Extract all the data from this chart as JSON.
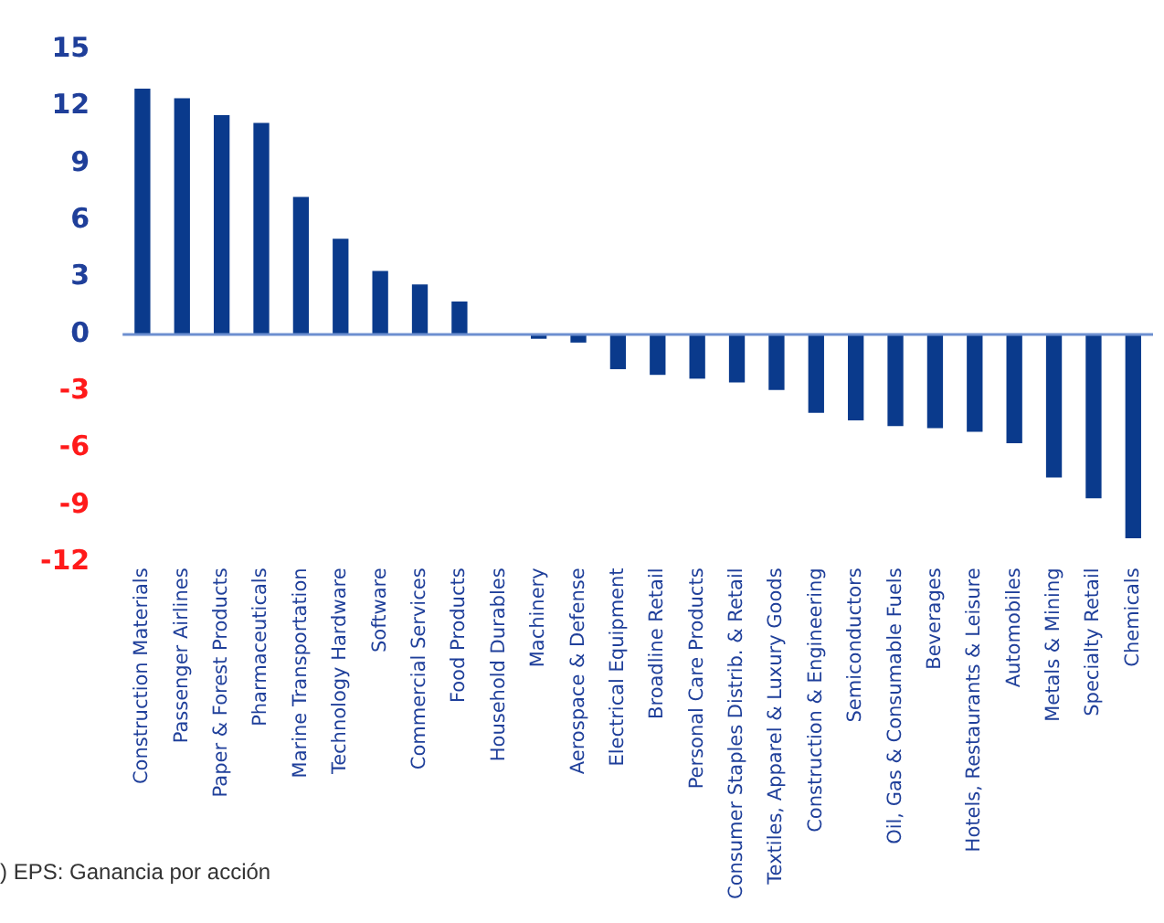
{
  "chart_data": {
    "type": "bar",
    "categories": [
      "Construction Materials",
      "Passenger Airlines",
      "Paper & Forest Products",
      "Pharmaceuticals",
      "Marine Transportation",
      "Technology Hardware",
      "Software",
      "Commercial Services",
      "Food Products",
      "Household Durables",
      "Machinery",
      "Aerospace & Defense",
      "Electrical Equipment",
      "Broadline Retail",
      "Personal Care Products",
      "Consumer Staples Distrib. & Retail",
      "Textiles, Apparel & Luxury Goods",
      "Construction & Engineering",
      "Semiconductors",
      "Oil, Gas & Consumable Fuels",
      "Beverages",
      "Hotels, Restaurants & Leisure",
      "Automobiles",
      "Metals & Mining",
      "Specialty Retail",
      "Chemicals"
    ],
    "values": [
      12.9,
      12.4,
      11.5,
      11.1,
      7.2,
      5.0,
      3.3,
      2.6,
      1.7,
      0,
      -0.2,
      -0.4,
      -1.8,
      -2.1,
      -2.3,
      -2.5,
      -2.9,
      -4.1,
      -4.5,
      -4.8,
      -4.9,
      -5.1,
      -5.7,
      -7.5,
      -8.6,
      -10.7
    ],
    "color": "#0a3a8c",
    "ylim": [
      -12,
      15
    ],
    "yticks": [
      -12,
      -9,
      -6,
      -3,
      0,
      3,
      6,
      9,
      12,
      15
    ],
    "grid": false,
    "legend": false,
    "ref_lines": [
      {
        "axis": "y",
        "value": 0,
        "color": "#6d8fd0"
      }
    ],
    "annotations": [
      ") EPS: Ganancia por acción"
    ]
  }
}
